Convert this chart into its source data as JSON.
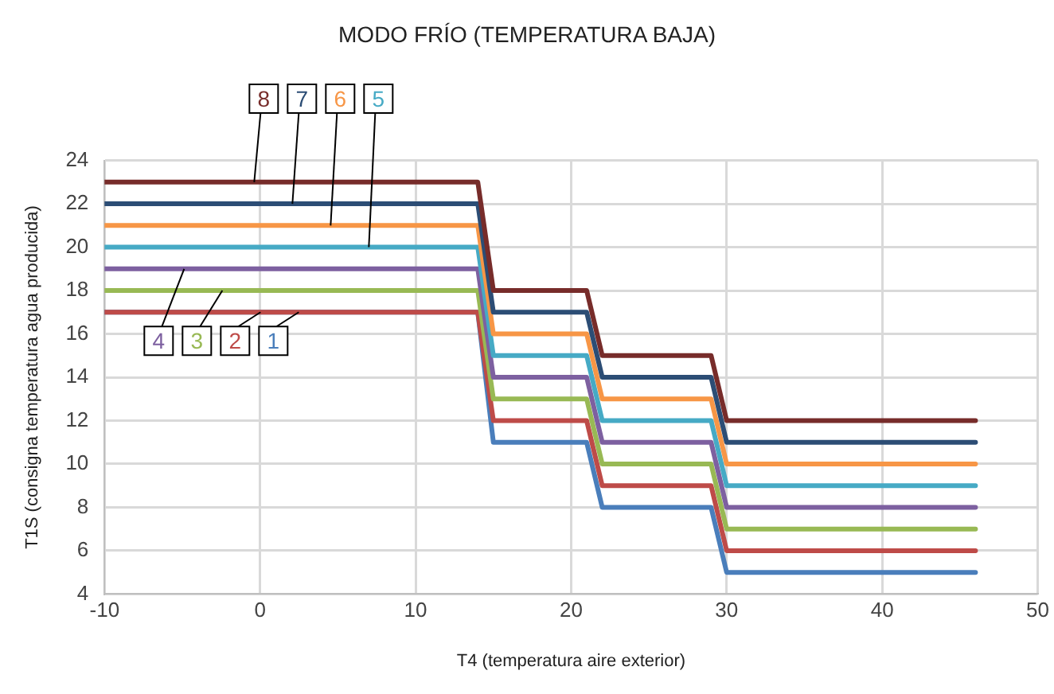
{
  "chart_data": {
    "type": "line",
    "title": "MODO FRÍO (TEMPERATURA BAJA)",
    "xlabel": "T4 (temperatura aire exterior)",
    "ylabel": "T1S (consigna temperatura agua producida)",
    "xlim": [
      -10,
      50
    ],
    "xticks": [
      -10,
      0,
      10,
      20,
      30,
      40,
      50
    ],
    "ylim": [
      4,
      24
    ],
    "yticks": [
      4,
      6,
      8,
      10,
      12,
      14,
      16,
      18,
      20,
      22,
      24
    ],
    "grid": true,
    "legend": false,
    "marker": "none",
    "line_style": "solid",
    "series": [
      {
        "name": "1",
        "color": "#4a7ebb",
        "x": [
          -10,
          14,
          15,
          21,
          22,
          29,
          30,
          46
        ],
        "values": [
          17,
          17,
          11,
          11,
          8,
          8,
          5,
          5
        ]
      },
      {
        "name": "2",
        "color": "#be4b48",
        "x": [
          -10,
          14,
          15,
          21,
          22,
          29,
          30,
          46
        ],
        "values": [
          17,
          17,
          12,
          12,
          9,
          9,
          6,
          6
        ]
      },
      {
        "name": "3",
        "color": "#98b954",
        "x": [
          -10,
          14,
          15,
          21,
          22,
          29,
          30,
          46
        ],
        "values": [
          18,
          18,
          13,
          13,
          10,
          10,
          7,
          7
        ]
      },
      {
        "name": "4",
        "color": "#7d60a0",
        "x": [
          -10,
          14,
          15,
          21,
          22,
          29,
          30,
          46
        ],
        "values": [
          19,
          19,
          14,
          14,
          11,
          11,
          8,
          8
        ]
      },
      {
        "name": "5",
        "color": "#46aac5",
        "x": [
          -10,
          14,
          15,
          21,
          22,
          29,
          30,
          46
        ],
        "values": [
          20,
          20,
          15,
          15,
          12,
          12,
          9,
          9
        ]
      },
      {
        "name": "6",
        "color": "#f79646",
        "x": [
          -10,
          14,
          15,
          21,
          22,
          29,
          30,
          46
        ],
        "values": [
          21,
          21,
          16,
          16,
          13,
          13,
          10,
          10
        ]
      },
      {
        "name": "7",
        "color": "#2c4d75",
        "x": [
          -10,
          14,
          15,
          21,
          22,
          29,
          30,
          46
        ],
        "values": [
          22,
          22,
          17,
          17,
          14,
          14,
          11,
          11
        ]
      },
      {
        "name": "8",
        "color": "#772c2a",
        "x": [
          -10,
          14,
          15,
          21,
          22,
          29,
          30,
          46
        ],
        "values": [
          23,
          23,
          18,
          18,
          15,
          15,
          12,
          12
        ]
      }
    ]
  }
}
